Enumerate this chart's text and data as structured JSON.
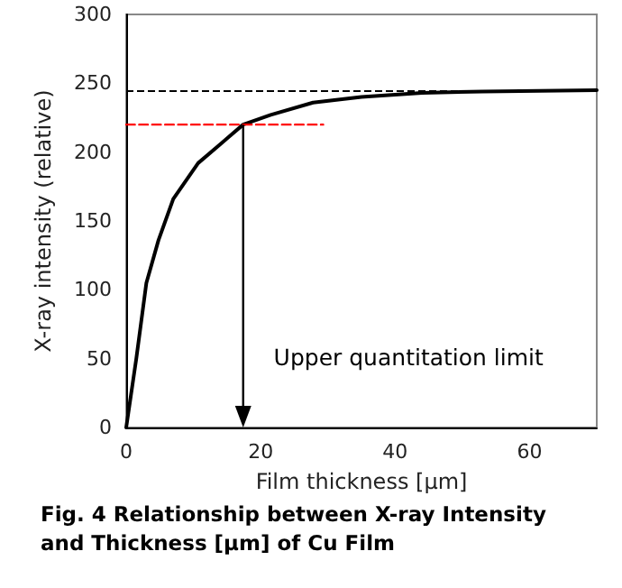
{
  "chart_data": {
    "type": "line",
    "xlabel": "Film thickness [μm]",
    "ylabel": "X-ray intensity (relative)",
    "xlim": [
      0,
      70
    ],
    "xticks": [
      0,
      20,
      40,
      60
    ],
    "ylim": [
      0,
      300
    ],
    "yticks": [
      0,
      50,
      100,
      150,
      200,
      250,
      300
    ],
    "marker": "none",
    "line_style": "solid",
    "series": [
      {
        "color": "#000000",
        "x": [
          0,
          1.5,
          3,
          4.8,
          7,
          10.7,
          14.3,
          17.4,
          21.5,
          27.8,
          35,
          44,
          53,
          70
        ],
        "values": [
          0,
          50,
          105,
          136,
          166,
          192,
          207,
          220,
          227,
          236,
          240,
          243,
          244,
          245
        ]
      },
      {
        "color": "#ff0000",
        "line_style": "dashed",
        "x": [
          0,
          29.3
        ],
        "values": [
          220,
          220
        ]
      }
    ],
    "ref_lines": [
      {
        "axis": "y",
        "value": 245,
        "color": "#000000",
        "line_style": "dashed"
      }
    ],
    "annotations": [
      "Upper quantitation limit",
      "Fig. 4 Relationship between X-ray Intensity and Thickness [μm] of Cu Film"
    ]
  }
}
